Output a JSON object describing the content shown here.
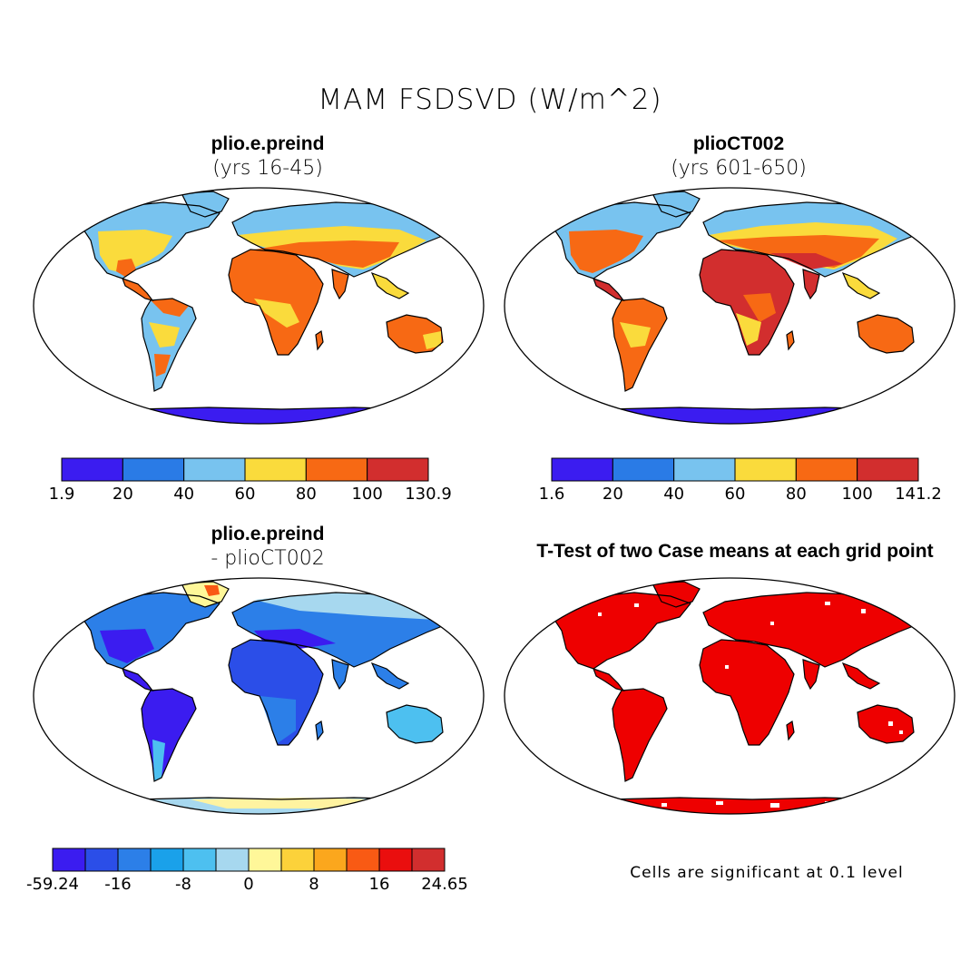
{
  "title": "MAM FSDSVD (W/m^2)",
  "panels": {
    "top_left": {
      "title": "plio.e.preind",
      "subtitle": "(yrs 16-45)"
    },
    "top_right": {
      "title": "plioCT002",
      "subtitle": "(yrs 601-650)"
    },
    "bottom_left": {
      "title": "plio.e.preind",
      "subtitle": "- plioCT002"
    },
    "bottom_right": {
      "title": "T-Test of two Case means at each grid point"
    }
  },
  "colorbars": {
    "top_left": {
      "labels": [
        "1.9",
        "20",
        "40",
        "60",
        "80",
        "100",
        "130.9"
      ],
      "colors": [
        "#3b1cf0",
        "#2a7be6",
        "#78c3ef",
        "#fadb3c",
        "#f76914",
        "#d22e2e"
      ]
    },
    "top_right": {
      "labels": [
        "1.6",
        "20",
        "40",
        "60",
        "80",
        "100",
        "141.2"
      ],
      "colors": [
        "#3b1cf0",
        "#2a7be6",
        "#78c3ef",
        "#fadb3c",
        "#f76914",
        "#d22e2e"
      ]
    },
    "bottom_left": {
      "labels": [
        "-59.24",
        "-16",
        "-8",
        "0",
        "8",
        "16",
        "24.65"
      ],
      "colors": [
        "#3b1cf0",
        "#2b4ee8",
        "#2c7fe8",
        "#1aa1ea",
        "#4dc0f0",
        "#a7d8ef",
        "#fff799",
        "#fcd23a",
        "#fba71d",
        "#f95a14",
        "#ea0e0e",
        "#d22e2e"
      ]
    }
  },
  "significance_note": "Cells are significant at 0.1 level",
  "colors": {
    "antarctica_top": "#3b1cf0",
    "antarctica_diff": "#fff3a0",
    "significant": "#ee0000"
  }
}
